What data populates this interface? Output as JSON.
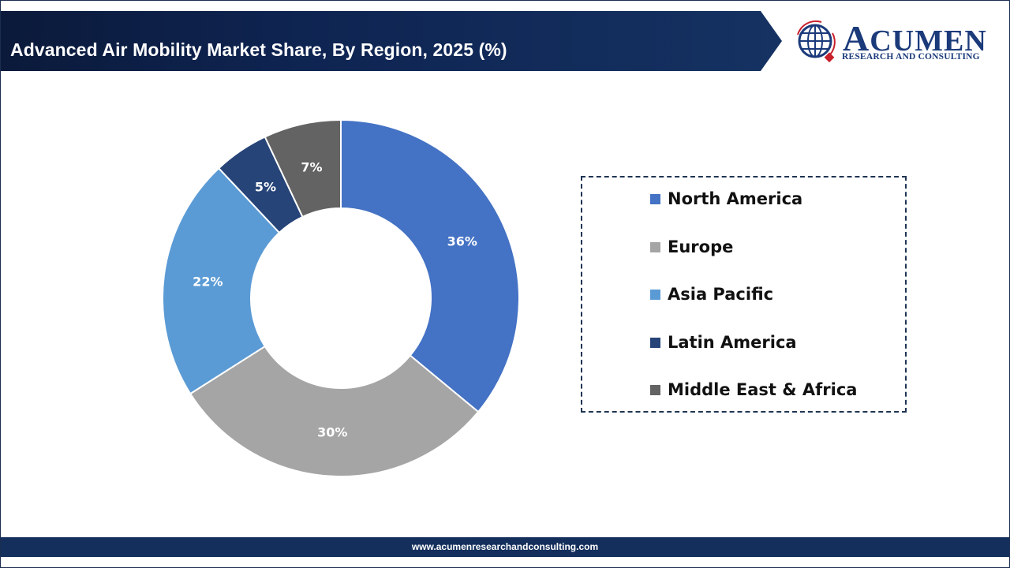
{
  "header": {
    "title": "Advanced Air Mobility Market Share, By Region, 2025 (%)"
  },
  "logo": {
    "initial": "A",
    "word_rest": "CUMEN",
    "subtitle": "RESEARCH AND CONSULTING",
    "icon": "globe-icon"
  },
  "footer": {
    "url": "www.acumenresearchandconsulting.com"
  },
  "chart_data": {
    "type": "pie",
    "variant": "donut",
    "title": "Advanced Air Mobility Market Share, By Region, 2025 (%)",
    "categories": [
      "North America",
      "Europe",
      "Asia Pacific",
      "Latin America",
      "Middle East & Africa"
    ],
    "values": [
      36,
      30,
      22,
      5,
      7
    ],
    "labels": [
      "36%",
      "30%",
      "22%",
      "5%",
      "7%"
    ],
    "colors": [
      "#4472c4",
      "#a5a5a5",
      "#5b9bd5",
      "#264478",
      "#636363"
    ],
    "legend_position": "right",
    "start_angle": "top, clockwise"
  },
  "legend": {
    "items": [
      {
        "label": "North America",
        "color": "#4472c4"
      },
      {
        "label": "Europe",
        "color": "#a5a5a5"
      },
      {
        "label": "Asia Pacific",
        "color": "#5b9bd5"
      },
      {
        "label": "Latin America",
        "color": "#264478"
      },
      {
        "label": "Middle East & Africa",
        "color": "#636363"
      }
    ]
  }
}
